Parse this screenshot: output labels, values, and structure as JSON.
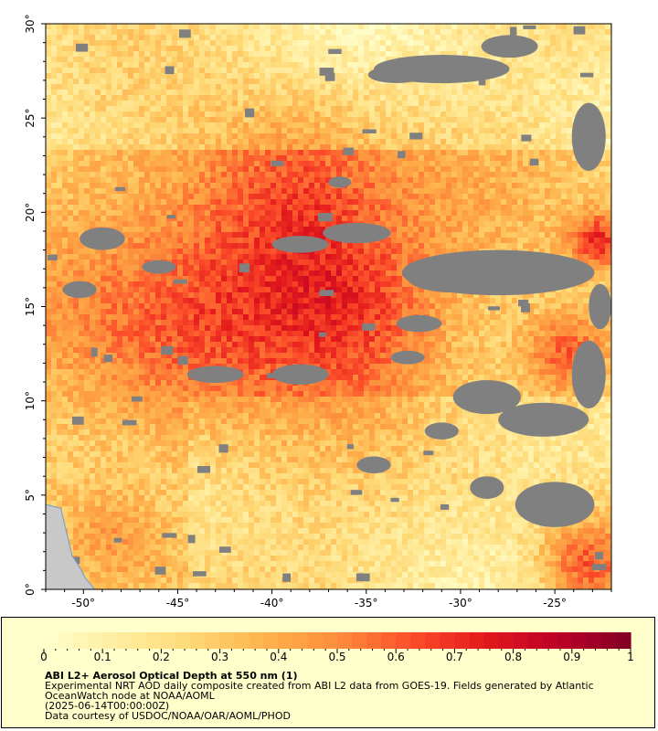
{
  "map": {
    "lat_range": [
      0,
      30
    ],
    "lon_range": [
      -52,
      -22
    ],
    "lat_ticks": [
      "0°",
      "5°",
      "10°",
      "15°",
      "20°",
      "25°",
      "30°"
    ],
    "lon_ticks": [
      "-50°",
      "-45°",
      "-40°",
      "-35°",
      "-30°",
      "-25°"
    ],
    "colors": {
      "no_data": "#808080",
      "land": "#c8c8c8",
      "coast": "#6a9fd0"
    }
  },
  "legend": {
    "range": [
      0,
      1
    ],
    "tick_labels": [
      "0",
      "0.1",
      "0.2",
      "0.3",
      "0.4",
      "0.5",
      "0.6",
      "0.7",
      "0.8",
      "0.9",
      "1"
    ],
    "colors": [
      "#ffffcc",
      "#ffeda0",
      "#fed976",
      "#feb24c",
      "#fd8d3c",
      "#fc4e2a",
      "#e31a1c",
      "#bd0026",
      "#800026"
    ],
    "title": "ABI L2+ Aerosol Optical Depth at 550 nm (1)",
    "line1": "Experimental NRT AOD daily composite created from ABI L2 data from GOES-19. Fields generated by Atlantic",
    "line2": "OceanWatch node at NOAA/AOML",
    "line3": "(2025-06-14T00:00:00Z)",
    "line4": "Data courtesy of USDOC/NOAA/OAR/AOML/PHOD"
  }
}
